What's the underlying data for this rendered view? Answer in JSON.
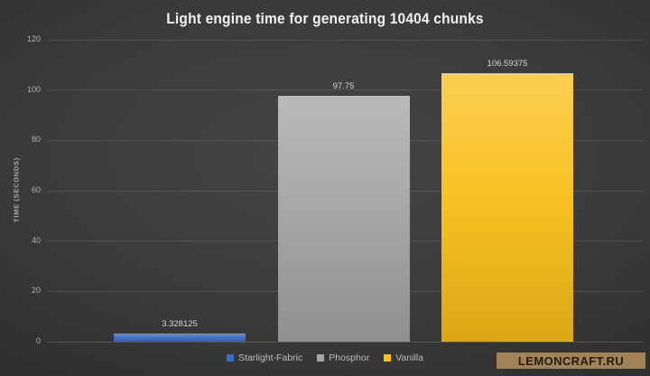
{
  "chart_data": {
    "type": "bar",
    "title": "Light engine time for generating 10404 chunks",
    "xlabel": "",
    "ylabel": "TIME (SECONDS)",
    "ylim": [
      0,
      120
    ],
    "yticks": [
      0,
      20,
      40,
      60,
      80,
      100,
      120
    ],
    "grid": true,
    "legend_position": "bottom",
    "categories": [
      "Starlight-Fabric",
      "Phosphor",
      "Vanilla"
    ],
    "values": [
      3.328125,
      97.75,
      106.59375
    ],
    "value_labels": [
      "3.328125",
      "97.75",
      "106.59375"
    ],
    "colors": [
      "#3a6cc2",
      "#a3a3a3",
      "#f9be18"
    ]
  },
  "legend": {
    "items": [
      {
        "label": "Starlight-Fabric",
        "color": "#3a6cc2"
      },
      {
        "label": "Phosphor",
        "color": "#a3a3a3"
      },
      {
        "label": "Vanilla",
        "color": "#f9be18"
      }
    ]
  },
  "watermark": {
    "text": "LEMONCRAFT.RU",
    "bg": "#a28357",
    "fg": "#211c14"
  }
}
